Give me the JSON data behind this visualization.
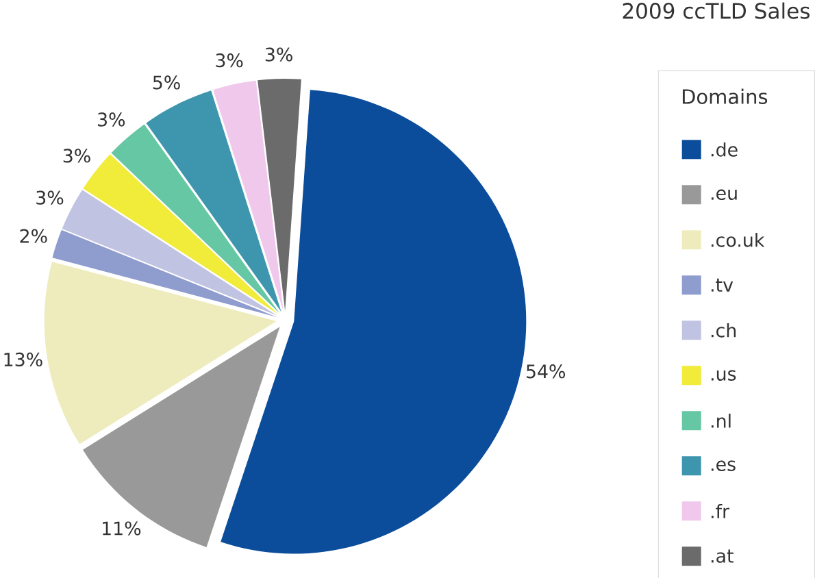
{
  "chart_data": {
    "type": "pie",
    "title": "2009 ccTLD Sales",
    "legend_title": "Domains",
    "legend": "right",
    "categories": [
      ".de",
      ".eu",
      ".co.uk",
      ".tv",
      ".ch",
      ".us",
      ".nl",
      ".es",
      ".fr",
      ".at"
    ],
    "values": [
      54,
      11,
      13,
      2,
      3,
      3,
      3,
      5,
      3,
      3
    ],
    "value_labels": [
      "54%",
      "11%",
      "13%",
      "2%",
      "3%",
      "3%",
      "3%",
      "5%",
      "3%",
      "3%"
    ],
    "colors": [
      "#0b4d9b",
      "#999999",
      "#eeecbc",
      "#8e9cce",
      "#c0c3e2",
      "#f1eb3a",
      "#66c7a4",
      "#3e96ae",
      "#f0c8ec",
      "#6b6b6b"
    ]
  }
}
